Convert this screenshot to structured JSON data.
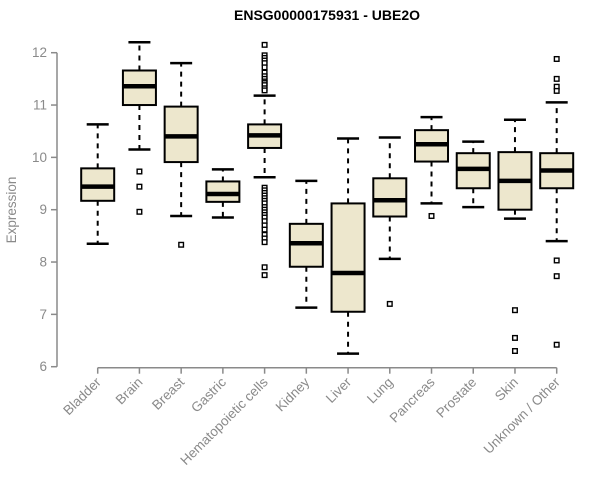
{
  "title": "ENSG00000175931 - UBE2O",
  "chart_data": {
    "type": "boxplot",
    "title": "ENSG00000175931 - UBE2O",
    "xlabel": "",
    "ylabel": "Expression",
    "y_ticks": [
      6,
      7,
      8,
      9,
      10,
      11,
      12
    ],
    "ylim": [
      5.9,
      12.3
    ],
    "grid": false,
    "legend": "none",
    "outlier_marker": "open-square",
    "whisker_style": "dashed",
    "colors": {
      "box_fill": "#EDE7CD",
      "box_stroke": "#000000",
      "median": "#000000",
      "axis": "#8A8A8A",
      "tick_label": "#8A8A8A",
      "title": "#000000",
      "background": "#FFFFFF"
    },
    "categories": [
      "Bladder",
      "Brain",
      "Breast",
      "Gastric",
      "Hematopoietic cells",
      "Kidney",
      "Liver",
      "Lung",
      "Pancreas",
      "Prostate",
      "Skin",
      "Unknown / Other"
    ],
    "series": [
      {
        "name": "Bladder",
        "low": 8.35,
        "q1": 9.17,
        "median": 9.44,
        "q3": 9.79,
        "high": 10.63,
        "outliers": []
      },
      {
        "name": "Brain",
        "low": 10.15,
        "q1": 11.0,
        "median": 11.36,
        "q3": 11.66,
        "high": 12.2,
        "outliers": [
          9.73,
          9.44,
          8.96
        ]
      },
      {
        "name": "Breast",
        "low": 8.88,
        "q1": 9.91,
        "median": 10.4,
        "q3": 10.97,
        "high": 11.8,
        "outliers": [
          8.33
        ]
      },
      {
        "name": "Gastric",
        "low": 8.85,
        "q1": 9.15,
        "median": 9.3,
        "q3": 9.54,
        "high": 9.77,
        "outliers": []
      },
      {
        "name": "Hematopoietic cells",
        "low": 9.62,
        "q1": 10.18,
        "median": 10.42,
        "q3": 10.63,
        "high": 11.18,
        "outliers": [
          12.15,
          11.95,
          11.9,
          11.85,
          11.8,
          11.72,
          11.62,
          11.55,
          11.5,
          11.45,
          11.42,
          11.38,
          11.32,
          11.28,
          9.42,
          9.37,
          9.32,
          9.27,
          9.22,
          9.17,
          9.12,
          9.05,
          9.0,
          8.95,
          8.9,
          8.85,
          8.78,
          8.7,
          8.62,
          8.52,
          8.45,
          8.38,
          7.9,
          7.75
        ]
      },
      {
        "name": "Kidney",
        "low": 7.13,
        "q1": 7.91,
        "median": 8.36,
        "q3": 8.73,
        "high": 9.55,
        "outliers": []
      },
      {
        "name": "Liver",
        "low": 6.25,
        "q1": 7.05,
        "median": 7.79,
        "q3": 9.12,
        "high": 10.36,
        "outliers": []
      },
      {
        "name": "Lung",
        "low": 8.06,
        "q1": 8.87,
        "median": 9.18,
        "q3": 9.6,
        "high": 10.38,
        "outliers": [
          7.2
        ]
      },
      {
        "name": "Pancreas",
        "low": 9.12,
        "q1": 9.92,
        "median": 10.25,
        "q3": 10.52,
        "high": 10.77,
        "outliers": [
          8.88
        ]
      },
      {
        "name": "Prostate",
        "low": 9.05,
        "q1": 9.41,
        "median": 9.78,
        "q3": 10.08,
        "high": 10.3,
        "outliers": []
      },
      {
        "name": "Skin",
        "low": 8.83,
        "q1": 9.0,
        "median": 9.55,
        "q3": 10.1,
        "high": 10.72,
        "outliers": [
          7.08,
          6.55,
          6.3
        ]
      },
      {
        "name": "Unknown / Other",
        "low": 8.4,
        "q1": 9.41,
        "median": 9.75,
        "q3": 10.08,
        "high": 11.05,
        "outliers": [
          11.88,
          11.5,
          11.35,
          11.27,
          8.03,
          7.73,
          6.42
        ]
      }
    ]
  }
}
